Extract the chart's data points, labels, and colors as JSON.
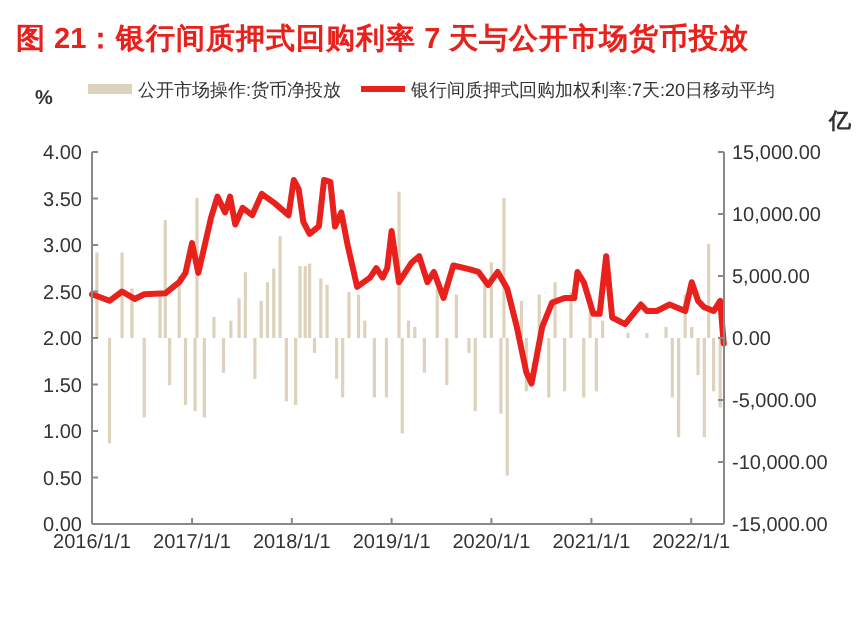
{
  "chart_data": {
    "type": "bar",
    "title": "图 21：银行间质押式回购利率 7 天与公开市场货币投放",
    "ylabel": "%",
    "y2label": "亿",
    "legend": "top",
    "grid": false,
    "xlim": [
      "2016-01-01",
      "2022-05-01"
    ],
    "xticks": [
      {
        "value": "2016-01-01",
        "label": "2016/1/1"
      },
      {
        "value": "2017-01-01",
        "label": "2017/1/1"
      },
      {
        "value": "2018-01-01",
        "label": "2018/1/1"
      },
      {
        "value": "2019-01-01",
        "label": "2019/1/1"
      },
      {
        "value": "2020-01-01",
        "label": "2020/1/1"
      },
      {
        "value": "2021-01-01",
        "label": "2021/1/1"
      },
      {
        "value": "2022-01-01",
        "label": "2022/1/1"
      }
    ],
    "ylim": [
      0,
      4
    ],
    "yticks": [
      {
        "value": 0,
        "label": "0.00"
      },
      {
        "value": 0.5,
        "label": "0.50"
      },
      {
        "value": 1,
        "label": "1.00"
      },
      {
        "value": 1.5,
        "label": "1.50"
      },
      {
        "value": 2,
        "label": "2.00"
      },
      {
        "value": 2.5,
        "label": "2.50"
      },
      {
        "value": 3,
        "label": "3.00"
      },
      {
        "value": 3.5,
        "label": "3.50"
      },
      {
        "value": 4,
        "label": "4.00"
      }
    ],
    "y2lim": [
      -15000,
      15000
    ],
    "y2ticks": [
      {
        "value": -15000,
        "label": "-15,000.00"
      },
      {
        "value": -10000,
        "label": "-10,000.00"
      },
      {
        "value": -5000,
        "label": "-5,000.00"
      },
      {
        "value": 0,
        "label": "0.00"
      },
      {
        "value": 5000,
        "label": "5,000.00"
      },
      {
        "value": 10000,
        "label": "10,000.00"
      },
      {
        "value": 15000,
        "label": "15,000.00"
      }
    ],
    "series": [
      {
        "name": "公开市场操作:货币净投放",
        "axis": "y2",
        "color": "#ddd3bd",
        "x": [
          "2016-01-19",
          "2016-03-05",
          "2016-04-20",
          "2016-05-26",
          "2016-07-10",
          "2016-09-06",
          "2016-09-25",
          "2016-10-11",
          "2016-11-15",
          "2016-12-08",
          "2017-01-12",
          "2017-01-19",
          "2017-02-15",
          "2017-03-22",
          "2017-04-26",
          "2017-05-23",
          "2017-06-22",
          "2017-07-15",
          "2017-08-19",
          "2017-09-11",
          "2017-10-04",
          "2017-10-27",
          "2017-11-19",
          "2017-12-12",
          "2018-01-15",
          "2018-01-31",
          "2018-02-19",
          "2018-03-07",
          "2018-03-25",
          "2018-04-17",
          "2018-05-10",
          "2018-06-14",
          "2018-07-06",
          "2018-07-29",
          "2018-09-02",
          "2018-09-25",
          "2018-10-30",
          "2018-12-13",
          "2019-01-28",
          "2019-02-09",
          "2019-03-04",
          "2019-03-27",
          "2019-05-01",
          "2019-06-17",
          "2019-07-22",
          "2019-08-26",
          "2019-10-11",
          "2019-11-03",
          "2019-12-08",
          "2020-01-01",
          "2020-02-05",
          "2020-02-16",
          "2020-02-28",
          "2020-04-20",
          "2020-05-08",
          "2020-06-24",
          "2020-07-29",
          "2020-08-21",
          "2020-09-25",
          "2020-10-18",
          "2020-12-04",
          "2020-12-27",
          "2021-01-19",
          "2021-02-11",
          "2021-05-15",
          "2021-07-23",
          "2021-10-01",
          "2021-10-24",
          "2021-11-16",
          "2021-12-10",
          "2022-01-03",
          "2022-01-26",
          "2022-02-18",
          "2022-03-06",
          "2022-03-24",
          "2022-04-17"
        ],
        "values": [
          6900,
          -8500,
          6900,
          4000,
          -6400,
          3500,
          9500,
          -3800,
          5000,
          -5400,
          -5900,
          11300,
          -6400,
          1700,
          -2800,
          1400,
          3200,
          5300,
          -3300,
          3000,
          4500,
          5600,
          8200,
          -5100,
          -5400,
          5800,
          5800,
          6000,
          -1200,
          4800,
          4300,
          -3300,
          -4800,
          3700,
          3500,
          1400,
          -4800,
          -4800,
          11800,
          -7700,
          1400,
          900,
          -2800,
          4000,
          -3800,
          3500,
          -1200,
          -5900,
          4500,
          6100,
          -6100,
          11300,
          -11100,
          3000,
          -4300,
          3500,
          -4800,
          4500,
          -4300,
          3700,
          -4800,
          3500,
          -4300,
          1400,
          400,
          400,
          900,
          -4800,
          -8000,
          3500,
          900,
          -3000,
          -8000,
          7600,
          -4300,
          -5600
        ]
      },
      {
        "name": "银行间质押式回购加权利率:7天:20日移动平均",
        "type": "line",
        "color": "#e8211c",
        "x": [
          "2016-01-01",
          "2016-03-05",
          "2016-04-20",
          "2016-06-05",
          "2016-07-10",
          "2016-09-25",
          "2016-11-15",
          "2016-12-08",
          "2017-01-01",
          "2017-01-24",
          "2017-03-12",
          "2017-04-04",
          "2017-05-02",
          "2017-05-20",
          "2017-06-08",
          "2017-07-05",
          "2017-08-09",
          "2017-09-13",
          "2017-10-30",
          "2017-12-20",
          "2018-01-08",
          "2018-01-26",
          "2018-02-12",
          "2018-03-07",
          "2018-04-10",
          "2018-04-29",
          "2018-05-22",
          "2018-06-08",
          "2018-07-01",
          "2018-07-24",
          "2018-08-28",
          "2018-10-14",
          "2018-11-06",
          "2018-11-29",
          "2018-12-16",
          "2019-01-01",
          "2019-01-28",
          "2019-03-15",
          "2019-04-12",
          "2019-05-12",
          "2019-06-05",
          "2019-07-10",
          "2019-08-15",
          "2019-10-11",
          "2019-11-15",
          "2019-12-20",
          "2020-01-24",
          "2020-02-28",
          "2020-04-03",
          "2020-05-08",
          "2020-05-27",
          "2020-07-05",
          "2020-08-10",
          "2020-09-25",
          "2020-10-30",
          "2020-11-11",
          "2020-12-04",
          "2021-01-08",
          "2021-01-31",
          "2021-02-24",
          "2021-03-18",
          "2021-05-04",
          "2021-07-01",
          "2021-07-23",
          "2021-08-28",
          "2021-10-14",
          "2021-12-10",
          "2022-01-03",
          "2022-01-26",
          "2022-02-18",
          "2022-03-24",
          "2022-04-17",
          "2022-04-30"
        ],
        "values": [
          2.47,
          2.4,
          2.5,
          2.42,
          2.47,
          2.48,
          2.6,
          2.7,
          3.02,
          2.7,
          3.3,
          3.52,
          3.35,
          3.52,
          3.22,
          3.4,
          3.32,
          3.55,
          3.45,
          3.32,
          3.7,
          3.6,
          3.25,
          3.12,
          3.2,
          3.7,
          3.68,
          3.2,
          3.35,
          3.0,
          2.55,
          2.65,
          2.75,
          2.65,
          2.75,
          3.15,
          2.6,
          2.81,
          2.88,
          2.6,
          2.71,
          2.43,
          2.78,
          2.74,
          2.71,
          2.57,
          2.71,
          2.53,
          2.12,
          1.63,
          1.51,
          2.12,
          2.38,
          2.43,
          2.43,
          2.71,
          2.6,
          2.26,
          2.26,
          2.88,
          2.22,
          2.15,
          2.36,
          2.29,
          2.29,
          2.36,
          2.29,
          2.6,
          2.4,
          2.33,
          2.29,
          2.4,
          1.94
        ]
      }
    ]
  }
}
